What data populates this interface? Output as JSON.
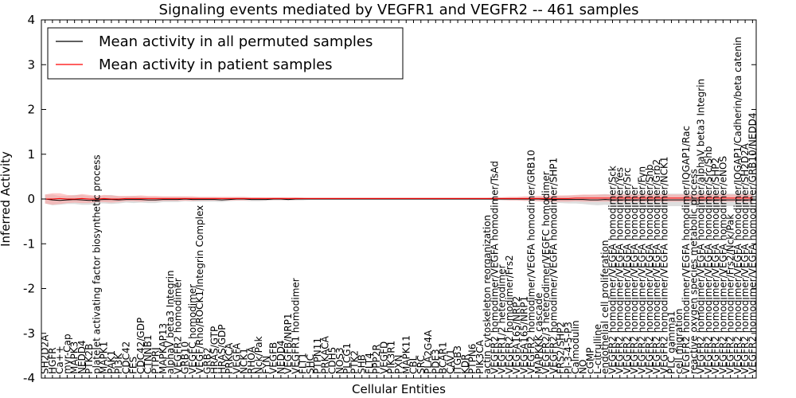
{
  "chart_data": {
    "type": "line",
    "title": "Signaling events mediated by VEGFR1 and VEGFR2 -- 461 samples",
    "xlabel": "Cellular Entities",
    "ylabel": "Inferred Activity",
    "ylim": [
      -4,
      4
    ],
    "yticks": [
      -4,
      -3,
      -2,
      -1,
      0,
      1,
      2,
      3,
      4
    ],
    "grid": false,
    "legend_position": "top-left",
    "categories": [
      "SH2D2A",
      "HGFR",
      "Ca++",
      "myr-Cap",
      "MAPK3",
      "NEDD4",
      "PTK2B",
      "platelet activating factor biosynthetic process",
      "MAPK1",
      "PAK1",
      "PI3K",
      "CDC42",
      "FES",
      "CDC42/GDP",
      "CTNNB1",
      "PTPRJ",
      "MAPKAP13",
      "alphaV beta3 Integrin",
      "VEGFR2 homodimer",
      "GRB10",
      "VEGFC homodimer",
      "VEGF/Rho/ROCK1/Integrin Complex",
      "GRB2",
      "HRAS/GTP",
      "HRAS/GDP",
      "PRKCA",
      "VEGFA",
      "NCK1",
      "RHOA",
      "Nck/Pak",
      "FYN",
      "VEGFB",
      "NEDD4",
      "VEGFB/NRP1",
      "VEGFR1 homodimer",
      "FLT1",
      "SHC",
      "PTPN11",
      "PRKACA",
      "CDH5",
      "NOS3",
      "PLCG1",
      "PTK2",
      "SHB",
      "FLT4",
      "PPP2R",
      "VEGFD",
      "PIK3R1",
      "PXN",
      "MAPK11",
      "CBL",
      "SRC",
      "PLA2G4A",
      "PDE3",
      "BCAR1",
      "CAV1",
      "ITGB3",
      "KDR",
      "PTPN6",
      "PIK3CA",
      "actin cytoskeleton reorganization",
      "VEGFR2 homodimer/VEGFA homodimer/TsAd",
      "VEGFR1/2 heterodimer",
      "VEGFR2 homodimer/Frs2",
      "VEGFA165/NRP2",
      "VEGFA165/NRP1",
      "VEGFR2 homodimer/VEGFA homodimer/GRB10",
      "MAPKKK cascade",
      "VEGFR2/3 heterodimer/VEGFC homodimer",
      "VEGFR2 homodimer/VEGFA homodimer/SHP1",
      "FRS2/SHP2",
      "PI-3-4-5-P3",
      "Calmodulin",
      "NO",
      "cGMP",
      "L-citrulline",
      "endothelial cell proliferation",
      "VEGFR2 homodimer/VEGFA homodimer/Sck",
      "VEGFR2 homodimer/VEGFA homodimer/Yes",
      "VEGFR2 homodimer/VEGFA homodimer/Src",
      "VEGFR2 homodimer/VEGFA homodimer",
      "VEGFR2 homodimer/VEGFA homodimer/Fyn",
      "VEGFR2 homodimer/VEGFA homodimer/Shb",
      "VEGFR2 homodimer/VEGFA homodimer/Grb2",
      "VEGFR2 homodimer/VEGFA homodimer/NCK1",
      "PLC gamma1",
      "cell migration",
      "VEGFR2 homodimer/VEGFA homodimer/IQGAP1/Rac",
      "reactive oxygen species metabolic process",
      "VEGFR2 homodimer/VEGFA homodimer/alphaV beta3 Integrin",
      "VEGFR2 homodimer/VEGFA homodimer/Src/Shb",
      "VEGFR2 homodimer/VEGFA homodimer/SHP2",
      "VEGFR2 homodimer/VEGFA homodimer/eNOS",
      "VEGFR2 homodimer/Frs2/Nck/Pak",
      "VEGFR2 homodimer/VEGFA homodimer/IQGAP1/Cadherin/beta catenin",
      "VEGFR2 homodimer/VEGFA homodimer/SH2D2A",
      "VEGFR2 homodimer/VEGFA homodimer/GRB10/NEDD4"
    ],
    "series": [
      {
        "name": "Mean activity in all permuted samples",
        "color": "#000000",
        "band_color": "#c8c8c8",
        "values": [
          0.0,
          -0.02,
          -0.03,
          -0.02,
          -0.01,
          -0.02,
          -0.03,
          -0.02,
          -0.01,
          -0.01,
          -0.02,
          -0.01,
          -0.01,
          -0.01,
          -0.02,
          -0.02,
          -0.01,
          -0.01,
          -0.01,
          0.0,
          -0.01,
          -0.01,
          -0.01,
          -0.01,
          -0.02,
          -0.01,
          0.0,
          0.0,
          -0.01,
          -0.01,
          -0.01,
          0.0,
          0.0,
          -0.01,
          0.0,
          0.0,
          0.0,
          0.0,
          0.0,
          0.0,
          0.0,
          0.0,
          0.0,
          0.0,
          0.0,
          0.0,
          0.0,
          0.0,
          0.0,
          0.0,
          0.0,
          0.0,
          0.0,
          0.0,
          0.0,
          0.0,
          0.0,
          0.0,
          0.0,
          0.0,
          0.0,
          0.0,
          0.0,
          0.0,
          0.0,
          0.0,
          0.0,
          0.0,
          -0.01,
          -0.01,
          -0.01,
          -0.01,
          -0.01,
          -0.01,
          -0.02,
          -0.02,
          -0.01,
          -0.02,
          -0.02,
          -0.02,
          -0.02,
          -0.02,
          -0.02,
          -0.02,
          -0.02,
          -0.02,
          -0.02,
          -0.02,
          -0.02,
          -0.02,
          -0.02,
          -0.02,
          -0.02,
          -0.02,
          -0.02,
          -0.02,
          -0.02
        ],
        "band": [
          0.1,
          0.12,
          0.1,
          0.09,
          0.1,
          0.11,
          0.1,
          0.08,
          0.09,
          0.1,
          0.08,
          0.07,
          0.08,
          0.07,
          0.07,
          0.07,
          0.06,
          0.06,
          0.06,
          0.05,
          0.05,
          0.05,
          0.05,
          0.05,
          0.05,
          0.04,
          0.04,
          0.04,
          0.04,
          0.04,
          0.03,
          0.03,
          0.03,
          0.03,
          0.03,
          0.03,
          0.02,
          0.02,
          0.02,
          0.02,
          0.02,
          0.02,
          0.02,
          0.02,
          0.02,
          0.02,
          0.02,
          0.02,
          0.02,
          0.02,
          0.02,
          0.02,
          0.02,
          0.02,
          0.02,
          0.02,
          0.02,
          0.02,
          0.02,
          0.02,
          0.02,
          0.02,
          0.03,
          0.03,
          0.03,
          0.04,
          0.04,
          0.05,
          0.06,
          0.07,
          0.08,
          0.09,
          0.09,
          0.1,
          0.11,
          0.12,
          0.12,
          0.12,
          0.13,
          0.13,
          0.13,
          0.13,
          0.14,
          0.14,
          0.14,
          0.14,
          0.14,
          0.14,
          0.14,
          0.14,
          0.14,
          0.14,
          0.14,
          0.14,
          0.14,
          0.14,
          0.14
        ]
      },
      {
        "name": "Mean activity in patient samples",
        "color": "#ff0000",
        "band_color": "#ff9c9c",
        "values": [
          0.0,
          0.0,
          0.01,
          0.0,
          0.0,
          0.01,
          0.0,
          0.0,
          0.01,
          0.0,
          0.0,
          0.01,
          0.01,
          0.01,
          0.01,
          0.01,
          0.01,
          0.01,
          0.01,
          0.01,
          0.01,
          0.01,
          0.01,
          0.01,
          0.01,
          0.01,
          0.01,
          0.01,
          0.01,
          0.01,
          0.01,
          0.01,
          0.01,
          0.01,
          0.01,
          0.01,
          0.01,
          0.01,
          0.01,
          0.01,
          0.01,
          0.01,
          0.01,
          0.01,
          0.01,
          0.01,
          0.01,
          0.01,
          0.01,
          0.01,
          0.01,
          0.01,
          0.01,
          0.01,
          0.01,
          0.01,
          0.01,
          0.01,
          0.01,
          0.01,
          0.01,
          0.01,
          0.01,
          0.01,
          0.01,
          0.01,
          0.01,
          0.01,
          0.01,
          0.01,
          0.01,
          0.01,
          0.02,
          0.02,
          0.02,
          0.02,
          0.02,
          0.02,
          0.02,
          0.02,
          0.02,
          0.02,
          0.02,
          0.02,
          0.02,
          0.02,
          0.02,
          0.02,
          0.02,
          0.02,
          0.02,
          0.02,
          0.02,
          0.02,
          0.02,
          0.02,
          0.02
        ],
        "band": [
          0.1,
          0.13,
          0.12,
          0.09,
          0.08,
          0.1,
          0.09,
          0.07,
          0.08,
          0.08,
          0.07,
          0.06,
          0.06,
          0.07,
          0.06,
          0.06,
          0.05,
          0.05,
          0.05,
          0.05,
          0.05,
          0.04,
          0.04,
          0.04,
          0.04,
          0.04,
          0.04,
          0.04,
          0.03,
          0.03,
          0.03,
          0.03,
          0.03,
          0.03,
          0.03,
          0.02,
          0.02,
          0.02,
          0.02,
          0.02,
          0.02,
          0.02,
          0.02,
          0.02,
          0.02,
          0.02,
          0.02,
          0.02,
          0.02,
          0.02,
          0.02,
          0.02,
          0.02,
          0.02,
          0.02,
          0.02,
          0.02,
          0.02,
          0.02,
          0.02,
          0.02,
          0.03,
          0.03,
          0.04,
          0.04,
          0.05,
          0.05,
          0.06,
          0.06,
          0.07,
          0.07,
          0.07,
          0.07,
          0.08,
          0.08,
          0.08,
          0.08,
          0.08,
          0.08,
          0.08,
          0.08,
          0.08,
          0.08,
          0.08,
          0.08,
          0.08,
          0.08,
          0.08,
          0.08,
          0.08,
          0.08,
          0.08,
          0.08,
          0.08,
          0.08,
          0.08,
          0.08
        ]
      }
    ]
  }
}
